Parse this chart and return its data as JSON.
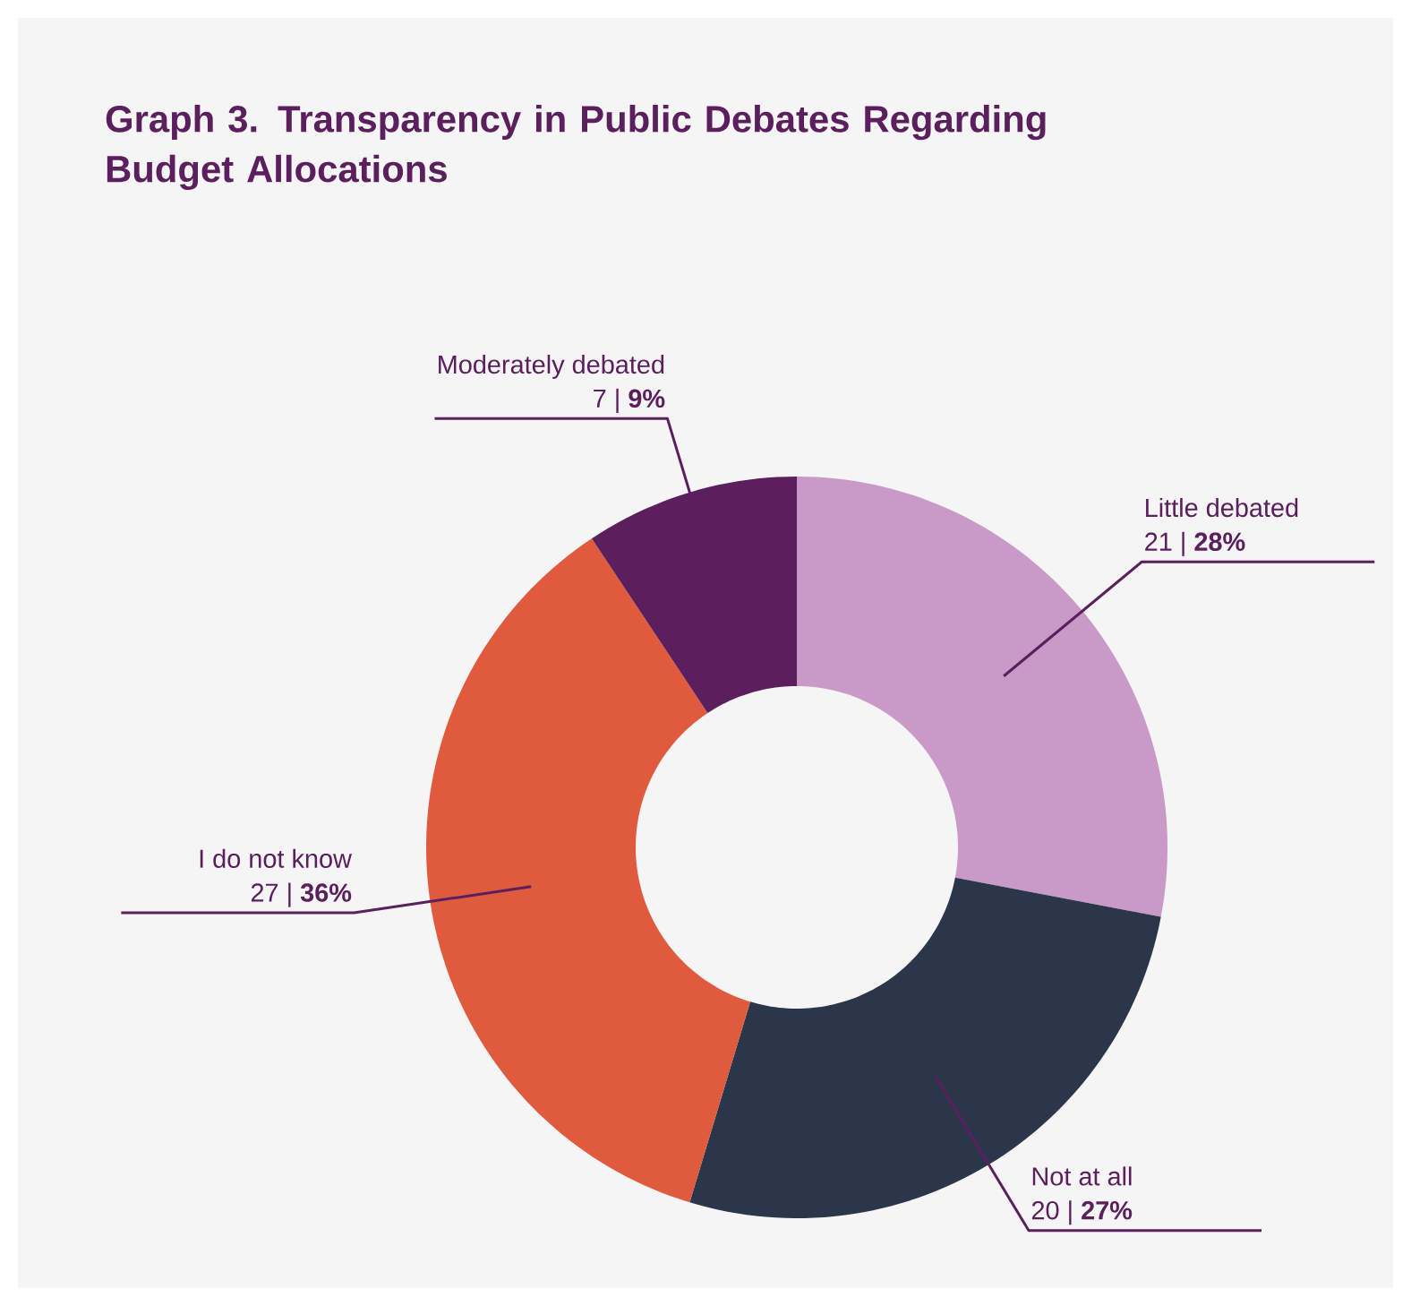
{
  "chart_data": {
    "type": "donut",
    "title": "Graph 3. Transparency in Public Debates Regarding Budget Allocations",
    "categories": [
      "Little debated",
      "Not at all",
      "I do not know",
      "Moderately debated"
    ],
    "values": [
      21,
      20,
      27,
      7
    ],
    "value_labels": [
      "21 | **28%**",
      "20 | **27%**",
      "27 | **36%**",
      "7 | **9%**"
    ],
    "colors": [
      "#c999c8",
      "#2b364a",
      "#e05b3e",
      "#5c1f5e"
    ]
  }
}
